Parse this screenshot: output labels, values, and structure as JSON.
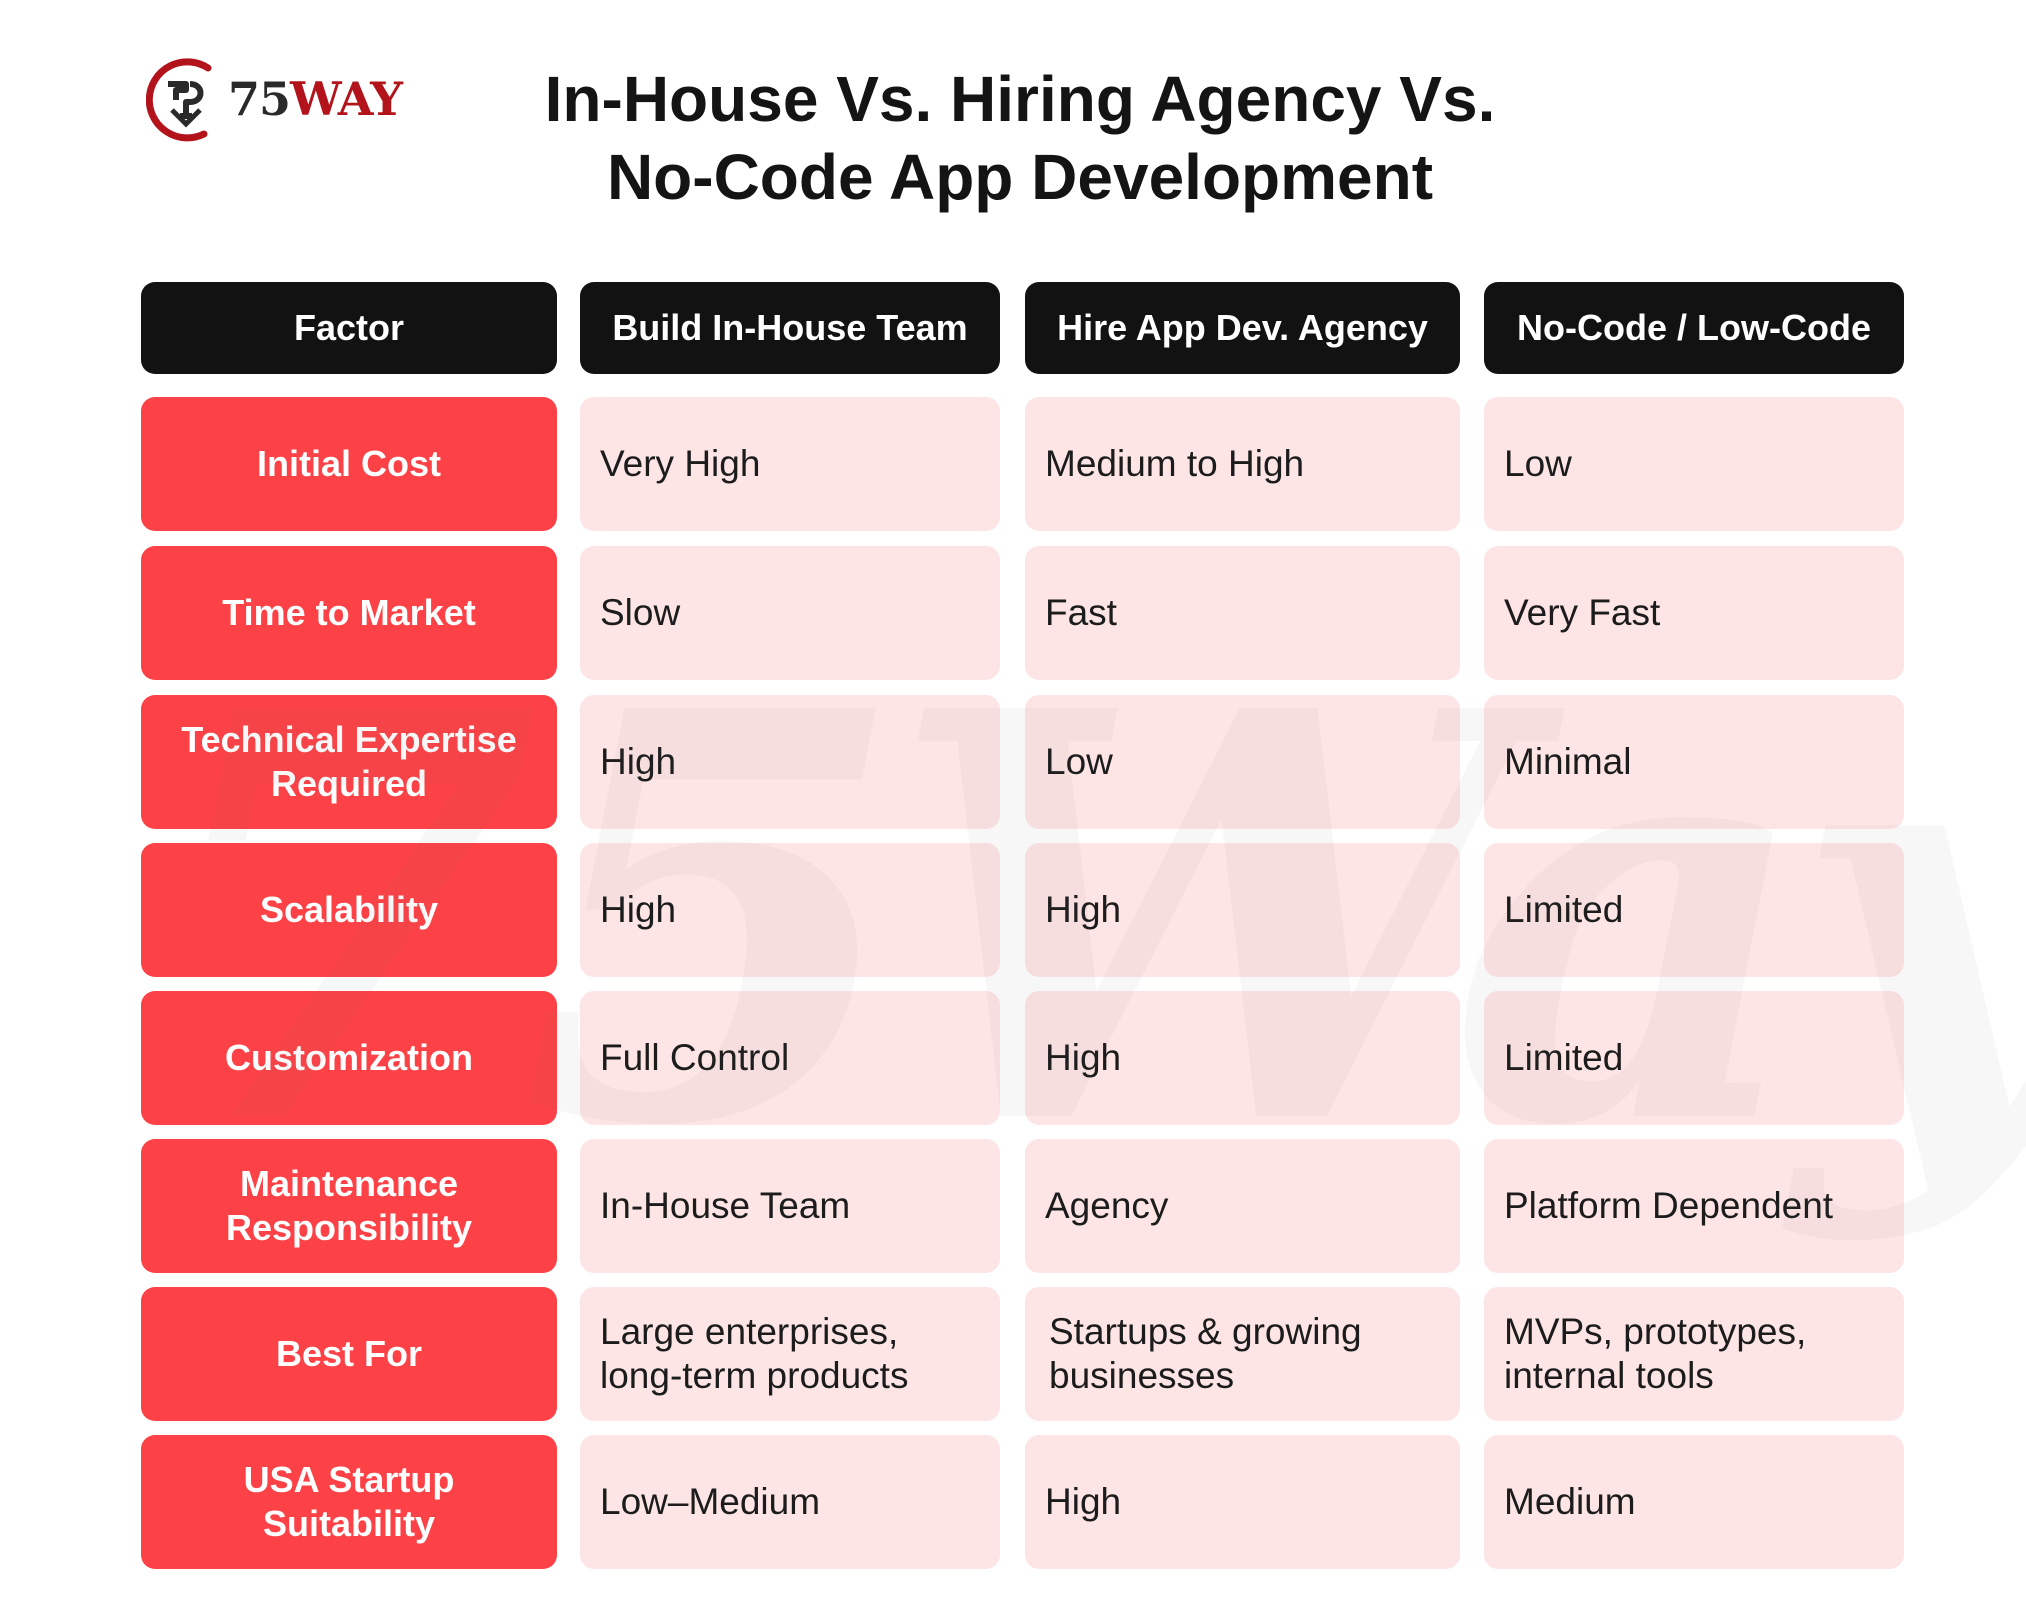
{
  "brand": {
    "logo_number": "75",
    "logo_word": "WAY",
    "watermark": "75Way"
  },
  "title": {
    "line1": "In-House Vs. Hiring Agency Vs.",
    "line2": "No-Code App Development"
  },
  "table": {
    "headers": [
      "Factor",
      "Build In-House Team",
      "Hire App Dev. Agency",
      "No-Code / Low-Code"
    ],
    "rows": [
      {
        "factor": [
          "Initial Cost"
        ],
        "in_house": [
          "Very High"
        ],
        "agency": [
          "Medium to High"
        ],
        "no_code": [
          "Low"
        ]
      },
      {
        "factor": [
          "Time to Market"
        ],
        "in_house": [
          "Slow"
        ],
        "agency": [
          "Fast"
        ],
        "no_code": [
          "Very Fast"
        ]
      },
      {
        "factor": [
          "Technical Expertise",
          "Required"
        ],
        "in_house": [
          "High"
        ],
        "agency": [
          "Low"
        ],
        "no_code": [
          "Minimal"
        ]
      },
      {
        "factor": [
          "Scalability"
        ],
        "in_house": [
          "High"
        ],
        "agency": [
          "High"
        ],
        "no_code": [
          "Limited"
        ]
      },
      {
        "factor": [
          "Customization"
        ],
        "in_house": [
          "Full Control"
        ],
        "agency": [
          "High"
        ],
        "no_code": [
          "Limited"
        ]
      },
      {
        "factor": [
          "Maintenance",
          "Responsibility"
        ],
        "in_house": [
          "In-House Team"
        ],
        "agency": [
          "Agency"
        ],
        "no_code": [
          "Platform Dependent"
        ]
      },
      {
        "factor": [
          "Best For"
        ],
        "in_house": [
          "Large enterprises,",
          "long-term products"
        ],
        "agency": [
          "Startups & growing",
          "businesses"
        ],
        "no_code": [
          "MVPs, prototypes,",
          "internal tools"
        ]
      },
      {
        "factor": [
          "USA Startup",
          "Suitability"
        ],
        "in_house": [
          "Low–Medium"
        ],
        "agency": [
          "High"
        ],
        "no_code": [
          "Medium"
        ]
      }
    ]
  },
  "colors": {
    "header_bg": "#121212",
    "factor_bg": "#fd4247",
    "value_bg": "#fde5e6",
    "brand_red": "#b3141c"
  }
}
